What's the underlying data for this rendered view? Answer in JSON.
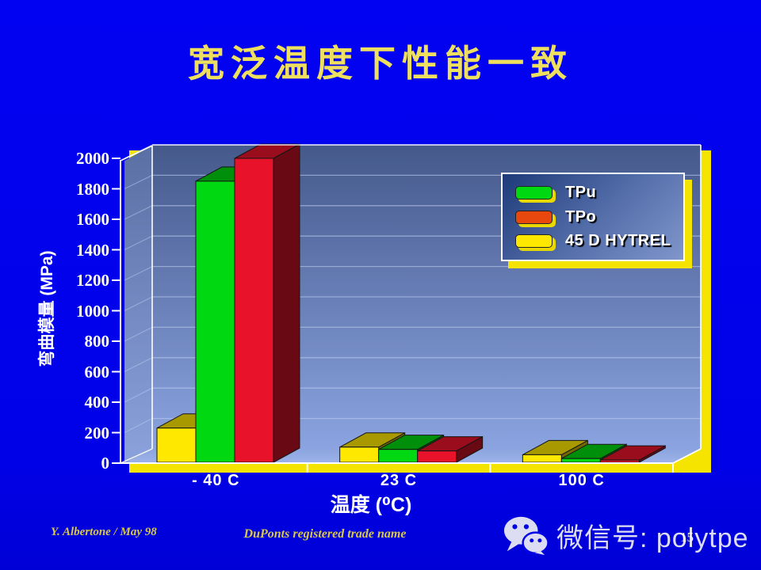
{
  "slide": {
    "title": "宽泛温度下性能一致",
    "page_number": "15",
    "footer_left": "Y. Albertone / May 98",
    "footer_center": "DuPonts registered trade name"
  },
  "wechat": {
    "icon": "wechat-icon",
    "label": "微信号: polytpe"
  },
  "colors": {
    "background": "#0101E8",
    "title_text": "#EFDF5E",
    "footer_text": "#D9C84A",
    "axis_text": "#FFFFFF",
    "drop_shadow": "#F5E400",
    "back_wall_top": "#45598B",
    "back_wall_bottom": "#8BA4E1",
    "floor": "#93AAE2",
    "gridline": "#BCCBEF",
    "frame_line": "#FFFFFF"
  },
  "chart_data": {
    "type": "bar",
    "projection": "3d",
    "title": "",
    "xlabel": "温度 (⁰C)",
    "ylabel": "弯曲模量 (MPa)",
    "categories": [
      "- 40  C",
      "23 C",
      "100 C"
    ],
    "series": [
      {
        "name": "TPu",
        "color": "#00D911",
        "values": [
          1850,
          90,
          30
        ]
      },
      {
        "name": "TPo",
        "color": "#E8132B",
        "legend_color": "#E8480E",
        "values": [
          2000,
          80,
          20
        ]
      },
      {
        "name": "45 D HYTREL",
        "color": "#FFE800",
        "values": [
          230,
          105,
          55
        ]
      }
    ],
    "draw_order": [
      2,
      0,
      1
    ],
    "ylim": [
      0,
      2000
    ],
    "ytick_step": 200,
    "grid": true,
    "legend_position": "upper right"
  }
}
